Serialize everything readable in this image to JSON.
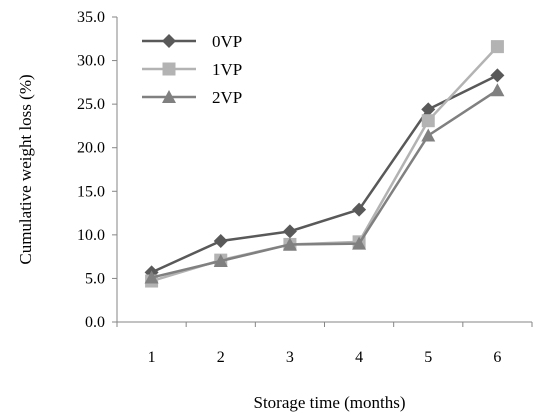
{
  "chart_data": {
    "type": "line",
    "title": "",
    "xlabel": "Storage time (months)",
    "ylabel": "Cumulative weight loss (%)",
    "x": [
      1,
      2,
      3,
      4,
      5,
      6
    ],
    "x_tick_labels": [
      "1",
      "2",
      "3",
      "4",
      "5",
      "6"
    ],
    "ylim": [
      0,
      35
    ],
    "y_tick_labels": [
      "0.0",
      "5.0",
      "10.0",
      "15.0",
      "20.0",
      "25.0",
      "30.0",
      "35.0"
    ],
    "grid": false,
    "legend_position": "top-left",
    "series": [
      {
        "name": "0VP",
        "values": [
          5.7,
          9.3,
          10.4,
          12.9,
          24.4,
          28.3
        ],
        "color": "#595959",
        "marker": "diamond"
      },
      {
        "name": "1VP",
        "values": [
          4.7,
          7.1,
          8.9,
          9.2,
          23.1,
          31.6
        ],
        "color": "#b3b3b3",
        "marker": "square"
      },
      {
        "name": "2VP",
        "values": [
          5.1,
          7.0,
          8.9,
          9.0,
          21.4,
          26.6
        ],
        "color": "#808080",
        "marker": "triangle"
      }
    ]
  }
}
